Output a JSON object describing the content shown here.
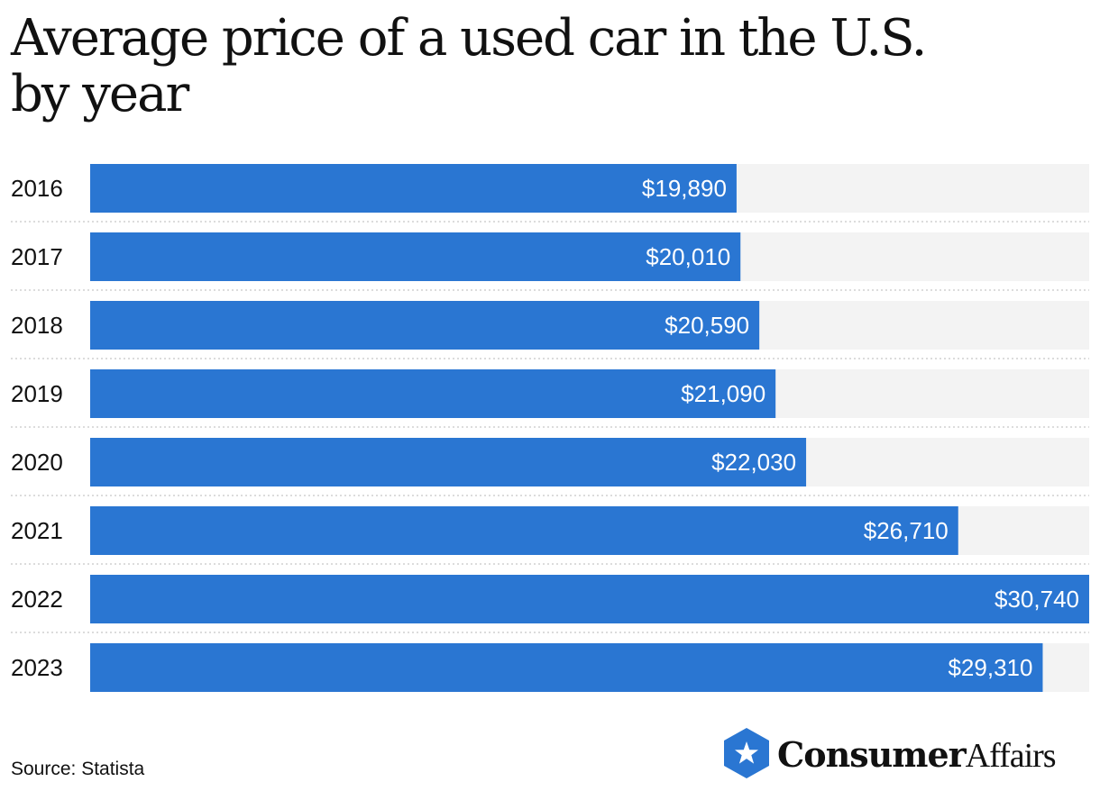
{
  "title_line1": "Average price of a used car in the U.S.",
  "title_line2": "by year",
  "source": "Source: Statista",
  "logo": {
    "text_bold": "Consumer",
    "text_regular": "Affairs",
    "icon": "star-shield-icon"
  },
  "colors": {
    "bar": "#2a76d2",
    "track": "#f3f3f3",
    "divider": "#c8c8c8",
    "logo": "#2a76d2"
  },
  "chart_data": {
    "type": "bar",
    "orientation": "horizontal",
    "categories": [
      "2016",
      "2017",
      "2018",
      "2019",
      "2020",
      "2021",
      "2022",
      "2023"
    ],
    "values": [
      19890,
      20010,
      20590,
      21090,
      22030,
      26710,
      30740,
      29310
    ],
    "value_labels": [
      "$19,890",
      "$20,010",
      "$20,590",
      "$21,090",
      "$22,030",
      "$26,710",
      "$30,740",
      "$29,310"
    ],
    "xlim": [
      0,
      30740
    ],
    "grid": false
  }
}
